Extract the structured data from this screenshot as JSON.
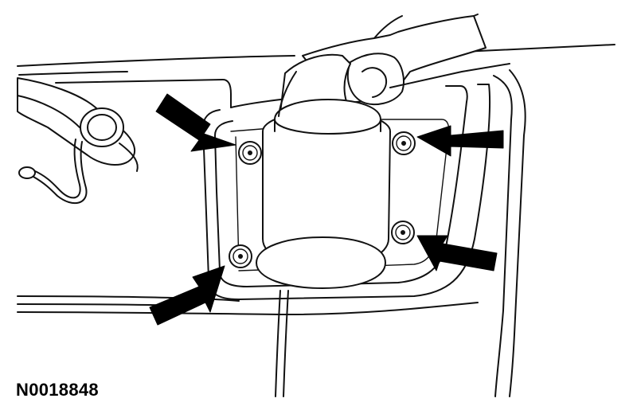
{
  "figure": {
    "id_label": "N0018848"
  },
  "callouts": [
    {
      "target": "upper-left-bolt",
      "icon": "arrow-icon"
    },
    {
      "target": "upper-right-bolt",
      "icon": "arrow-icon"
    },
    {
      "target": "lower-left-bolt",
      "icon": "arrow-icon"
    },
    {
      "target": "lower-right-bolt",
      "icon": "arrow-icon"
    }
  ],
  "colors": {
    "line": "#111111",
    "background": "#ffffff",
    "arrow": "#000000"
  }
}
